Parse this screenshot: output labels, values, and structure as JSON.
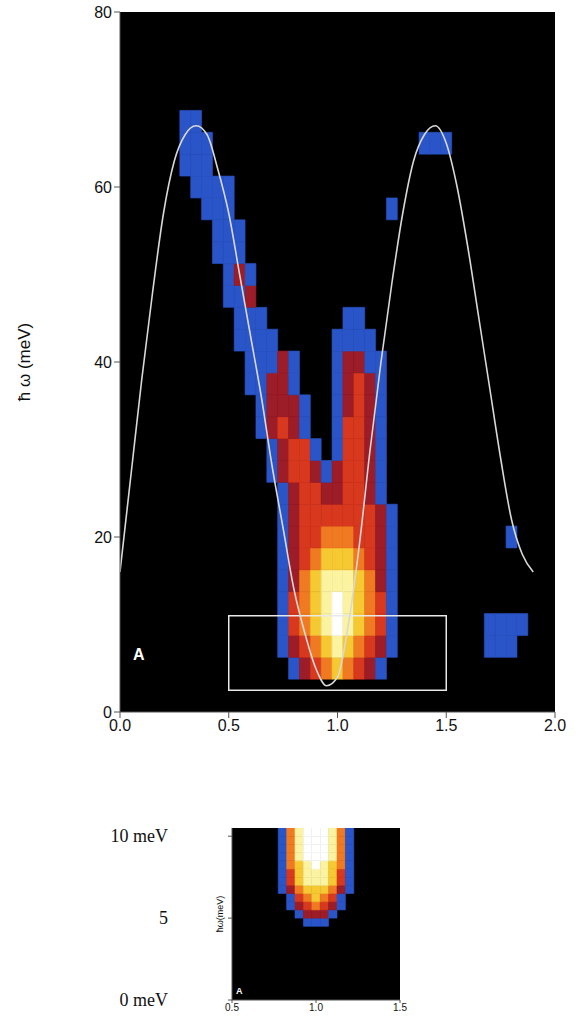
{
  "chart_data": [
    {
      "type": "heatmap",
      "panel": "A",
      "ylabel": "ħ ω (meV)",
      "xlim": [
        0,
        2
      ],
      "ylim": [
        0,
        80
      ],
      "xticks": [
        {
          "value": 0,
          "label": "0.0"
        },
        0.5,
        {
          "value": 1,
          "label": "1.0"
        },
        1.5,
        {
          "value": 2,
          "label": "2.0"
        }
      ],
      "yticks": [
        0,
        20,
        40,
        60,
        80
      ],
      "grid": false,
      "heatmap": {
        "cell_width": 0.05,
        "cell_height": 2.5,
        "level_colors": [
          "#2a55c8",
          "#9c1c28",
          "#d8381e",
          "#f07a22",
          "#f6c832",
          "#fbf3a0",
          "#ffffff"
        ],
        "rows": [
          {
            "y": 5,
            "x_start": 0.8,
            "levels": [
              1,
              2,
              3,
              4,
              5,
              4,
              3,
              2,
              1
            ]
          },
          {
            "y": 7.5,
            "x_start": 0.75,
            "levels": [
              1,
              2,
              3,
              4,
              5,
              6,
              5,
              4,
              3,
              2,
              1
            ]
          },
          {
            "y": 7.5,
            "x_start": 1.7,
            "levels": [
              1,
              1,
              1
            ]
          },
          {
            "y": 10,
            "x_start": 0.75,
            "levels": [
              1,
              3,
              4,
              5,
              6,
              7,
              6,
              5,
              4,
              3,
              1
            ]
          },
          {
            "y": 10,
            "x_start": 1.7,
            "levels": [
              1,
              1,
              1,
              1
            ]
          },
          {
            "y": 12.5,
            "x_start": 0.75,
            "levels": [
              1,
              3,
              4,
              5,
              6,
              7,
              6,
              5,
              4,
              3,
              1
            ]
          },
          {
            "y": 15,
            "x_start": 0.75,
            "levels": [
              1,
              2,
              4,
              5,
              6,
              6,
              6,
              5,
              4,
              2,
              1
            ]
          },
          {
            "y": 17.5,
            "x_start": 0.75,
            "levels": [
              1,
              2,
              3,
              4,
              5,
              5,
              5,
              4,
              3,
              2,
              1
            ]
          },
          {
            "y": 20,
            "x_start": 0.75,
            "levels": [
              1,
              2,
              3,
              3,
              4,
              4,
              4,
              3,
              3,
              2,
              1
            ]
          },
          {
            "y": 20,
            "x_start": 1.8,
            "levels": [
              1
            ]
          },
          {
            "y": 22.5,
            "x_start": 0.75,
            "levels": [
              1,
              2,
              3,
              3,
              3,
              3,
              3,
              3,
              3,
              2,
              1
            ]
          },
          {
            "y": 25,
            "x_start": 0.75,
            "levels": [
              1,
              2,
              3,
              3,
              2,
              2,
              3,
              3,
              2,
              1
            ]
          },
          {
            "y": 27.5,
            "x_start": 0.7,
            "levels": [
              1,
              2,
              3,
              3,
              2,
              1,
              2,
              3,
              3,
              2,
              1
            ]
          },
          {
            "y": 30,
            "x_start": 0.7,
            "levels": [
              1,
              2,
              3,
              3,
              1,
              0,
              1,
              3,
              3,
              2,
              1
            ]
          },
          {
            "y": 32.5,
            "x_start": 0.65,
            "levels": [
              1,
              2,
              3,
              2,
              1,
              0,
              0,
              1,
              3,
              3,
              2,
              1
            ]
          },
          {
            "y": 35,
            "x_start": 0.65,
            "levels": [
              1,
              2,
              2,
              2,
              1,
              0,
              0,
              1,
              2,
              3,
              2,
              1
            ]
          },
          {
            "y": 37.5,
            "x_start": 0.6,
            "levels": [
              1,
              1,
              2,
              2,
              1,
              0,
              0,
              0,
              1,
              2,
              3,
              2,
              1
            ]
          },
          {
            "y": 40,
            "x_start": 0.6,
            "levels": [
              1,
              1,
              1,
              2,
              1,
              0,
              0,
              0,
              1,
              2,
              2,
              1,
              1
            ]
          },
          {
            "y": 42.5,
            "x_start": 0.55,
            "levels": [
              1,
              1,
              1,
              1,
              0,
              0,
              0,
              0,
              0,
              1,
              1,
              1,
              1
            ]
          },
          {
            "y": 45,
            "x_start": 0.55,
            "levels": [
              1,
              1,
              1,
              0,
              0,
              0,
              0,
              0,
              0,
              0,
              1,
              1
            ]
          },
          {
            "y": 47.5,
            "x_start": 0.5,
            "levels": [
              1,
              1,
              2
            ]
          },
          {
            "y": 50,
            "x_start": 0.5,
            "levels": [
              1,
              2,
              1
            ]
          },
          {
            "y": 52.5,
            "x_start": 0.45,
            "levels": [
              1,
              1,
              1
            ]
          },
          {
            "y": 55,
            "x_start": 0.45,
            "levels": [
              1,
              1,
              1
            ]
          },
          {
            "y": 57.5,
            "x_start": 0.4,
            "levels": [
              1,
              1,
              1
            ]
          },
          {
            "y": 57.5,
            "x_start": 1.25,
            "levels": [
              1
            ]
          },
          {
            "y": 60,
            "x_start": 0.35,
            "levels": [
              1,
              1,
              1,
              1
            ]
          },
          {
            "y": 62.5,
            "x_start": 0.3,
            "levels": [
              1,
              1,
              1
            ]
          },
          {
            "y": 65,
            "x_start": 0.3,
            "levels": [
              1,
              1,
              1
            ]
          },
          {
            "y": 65,
            "x_start": 1.4,
            "levels": [
              1,
              1,
              1
            ]
          },
          {
            "y": 67.5,
            "x_start": 0.3,
            "levels": [
              1,
              1
            ]
          }
        ]
      },
      "line": {
        "color": "#d8d8d8",
        "x": [
          0,
          0.05,
          0.1,
          0.15,
          0.2,
          0.25,
          0.3,
          0.35,
          0.4,
          0.45,
          0.5,
          0.55,
          0.6,
          0.65,
          0.7,
          0.75,
          0.8,
          0.85,
          0.9,
          0.95,
          1.0,
          1.05,
          1.1,
          1.15,
          1.2,
          1.25,
          1.3,
          1.35,
          1.4,
          1.45,
          1.5,
          1.55,
          1.6,
          1.65,
          1.7,
          1.75,
          1.8,
          1.85,
          1.9
        ],
        "values": [
          16,
          27,
          38,
          48,
          57,
          63,
          66,
          67,
          66,
          62,
          57,
          50,
          43,
          36,
          28,
          21,
          14,
          9,
          5,
          3,
          4,
          10,
          19,
          30,
          40,
          49,
          57,
          63,
          66,
          67,
          65,
          60,
          53,
          45,
          37,
          29,
          22,
          18,
          16
        ]
      },
      "inset_box": {
        "xlim": [
          0.5,
          1.5
        ],
        "ylim": [
          2.5,
          11
        ]
      }
    },
    {
      "type": "heatmap",
      "panel": "A",
      "ylabel": "ħω(meV)",
      "xlim": [
        0.5,
        1.5
      ],
      "ylim": [
        0,
        10.5
      ],
      "xticks": [
        0.5,
        {
          "value": 1,
          "label": "1.0"
        },
        1.5
      ],
      "yticks": [
        {
          "value": 0,
          "label": "0 meV"
        },
        5,
        {
          "value": 10,
          "label": "10 meV"
        }
      ],
      "grid": false,
      "heatmap": {
        "cell_width": 0.05,
        "cell_height": 0.5,
        "level_colors": [
          "#2a55c8",
          "#9c1c28",
          "#d8381e",
          "#f07a22",
          "#f6c832",
          "#fbf3a0",
          "#ffffff"
        ],
        "rows": [
          {
            "y": 4.75,
            "x_start": 0.95,
            "levels": [
              1,
              1,
              1
            ]
          },
          {
            "y": 5.25,
            "x_start": 0.9,
            "levels": [
              1,
              2,
              2,
              2,
              1
            ]
          },
          {
            "y": 5.75,
            "x_start": 0.85,
            "levels": [
              1,
              2,
              3,
              4,
              3,
              2,
              1
            ]
          },
          {
            "y": 6.25,
            "x_start": 0.85,
            "levels": [
              1,
              3,
              4,
              5,
              4,
              3,
              1
            ]
          },
          {
            "y": 6.75,
            "x_start": 0.8,
            "levels": [
              1,
              2,
              4,
              5,
              5,
              5,
              4,
              2,
              1
            ]
          },
          {
            "y": 7.25,
            "x_start": 0.8,
            "levels": [
              1,
              3,
              5,
              6,
              6,
              6,
              5,
              3,
              1
            ]
          },
          {
            "y": 7.75,
            "x_start": 0.8,
            "levels": [
              1,
              3,
              5,
              6,
              6,
              6,
              5,
              3,
              1
            ]
          },
          {
            "y": 8.25,
            "x_start": 0.8,
            "levels": [
              1,
              4,
              5,
              6,
              7,
              6,
              5,
              4,
              1
            ]
          },
          {
            "y": 8.75,
            "x_start": 0.8,
            "levels": [
              1,
              4,
              6,
              7,
              7,
              7,
              6,
              4,
              1
            ]
          },
          {
            "y": 9.25,
            "x_start": 0.8,
            "levels": [
              1,
              4,
              6,
              7,
              7,
              7,
              6,
              4,
              1
            ]
          },
          {
            "y": 9.75,
            "x_start": 0.8,
            "levels": [
              1,
              4,
              6,
              7,
              7,
              7,
              6,
              4,
              1
            ]
          },
          {
            "y": 10.25,
            "x_start": 0.8,
            "levels": [
              1,
              4,
              6,
              7,
              7,
              7,
              6,
              4,
              1
            ]
          }
        ]
      }
    }
  ]
}
